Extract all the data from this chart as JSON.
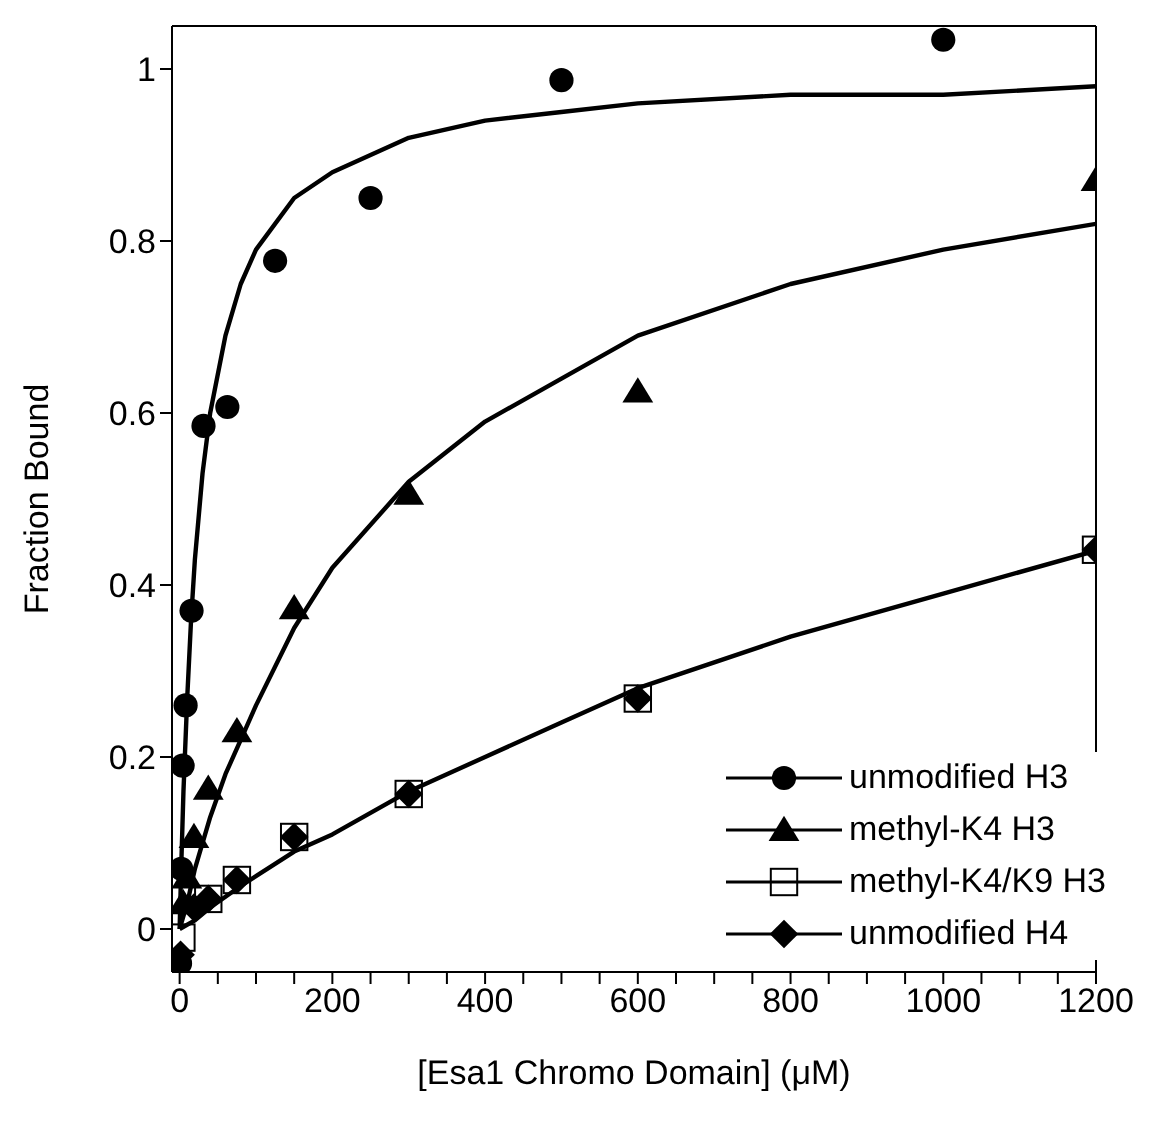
{
  "chart_data": {
    "type": "scatter",
    "xlabel": "[Esa1 Chromo Domain] (μM)",
    "ylabel": "Fraction Bound",
    "xlim": [
      -10,
      1200
    ],
    "ylim": [
      -0.05,
      1.05
    ],
    "xticks": [
      0,
      {
        "value": 50,
        "label": null
      },
      {
        "value": 100,
        "label": null
      },
      {
        "value": 150,
        "label": null
      },
      200,
      {
        "value": 250,
        "label": null
      },
      {
        "value": 300,
        "label": null
      },
      {
        "value": 350,
        "label": null
      },
      400,
      {
        "value": 450,
        "label": null
      },
      {
        "value": 500,
        "label": null
      },
      {
        "value": 550,
        "label": null
      },
      600,
      {
        "value": 650,
        "label": null
      },
      {
        "value": 700,
        "label": null
      },
      {
        "value": 750,
        "label": null
      },
      800,
      {
        "value": 850,
        "label": null
      },
      {
        "value": 900,
        "label": null
      },
      {
        "value": 950,
        "label": null
      },
      1000,
      {
        "value": 1050,
        "label": null
      },
      {
        "value": 1100,
        "label": null
      },
      {
        "value": 1150,
        "label": null
      },
      1200
    ],
    "yticks": [
      0,
      0.2,
      0.4,
      0.6,
      0.8,
      1
    ],
    "legend": "bottom right",
    "series": [
      {
        "type": "line",
        "marker": "none",
        "color": "#000000",
        "x": [
          0,
          2,
          5,
          10,
          15,
          20,
          30,
          40,
          60,
          80,
          100,
          150,
          200,
          300,
          400,
          500,
          600,
          800,
          1000,
          1200
        ],
        "values": [
          0,
          0.07,
          0.16,
          0.27,
          0.36,
          0.43,
          0.53,
          0.6,
          0.69,
          0.75,
          0.79,
          0.85,
          0.88,
          0.92,
          0.94,
          0.95,
          0.96,
          0.97,
          0.97,
          0.98
        ]
      },
      {
        "type": "line",
        "marker": "none",
        "color": "#000000",
        "x": [
          0,
          10,
          20,
          40,
          60,
          80,
          100,
          150,
          200,
          300,
          400,
          500,
          600,
          800,
          1000,
          1200
        ],
        "values": [
          0,
          0.03,
          0.07,
          0.13,
          0.18,
          0.22,
          0.26,
          0.35,
          0.42,
          0.52,
          0.59,
          0.64,
          0.69,
          0.75,
          0.79,
          0.82
        ]
      },
      {
        "type": "line",
        "marker": "none",
        "color": "#000000",
        "x": [
          0,
          20,
          40,
          80,
          150,
          200,
          300,
          400,
          500,
          600,
          800,
          1000,
          1200
        ],
        "values": [
          0,
          0.01,
          0.025,
          0.05,
          0.09,
          0.11,
          0.16,
          0.2,
          0.24,
          0.28,
          0.34,
          0.39,
          0.44
        ]
      },
      {
        "name": "unmodified H3",
        "marker": "circle",
        "color": "#000000",
        "x": [
          0.5,
          2,
          3.9,
          7.8,
          15.6,
          31.25,
          62.5,
          125,
          250,
          500,
          1000
        ],
        "values": [
          -0.04,
          0.07,
          0.19,
          0.26,
          0.37,
          0.585,
          0.607,
          0.777,
          0.85,
          0.987,
          1.034
        ]
      },
      {
        "name": "methyl-K4 H3",
        "marker": "triangle",
        "color": "#000000",
        "x": [
          4.7,
          9.4,
          18.75,
          37.5,
          75,
          150,
          300,
          600,
          1200
        ],
        "values": [
          0.03,
          0.06,
          0.107,
          0.163,
          0.23,
          0.373,
          0.506,
          0.625,
          0.871
        ]
      },
      {
        "name": "methyl-K4/K9 H3",
        "marker": "square",
        "color": "#000000",
        "x": [
          2.3,
          37.5,
          75,
          150,
          300,
          600,
          1200
        ],
        "values": [
          -0.01,
          0.035,
          0.057,
          0.107,
          0.157,
          0.268,
          0.441
        ]
      },
      {
        "name": "unmodified H4",
        "marker": "diamond",
        "color": "#000000",
        "x": [
          1.2,
          18.75,
          37.5,
          75,
          150,
          300,
          600,
          1200
        ],
        "values": [
          -0.03,
          0.025,
          0.035,
          0.057,
          0.107,
          0.157,
          0.268,
          0.441
        ]
      }
    ]
  }
}
